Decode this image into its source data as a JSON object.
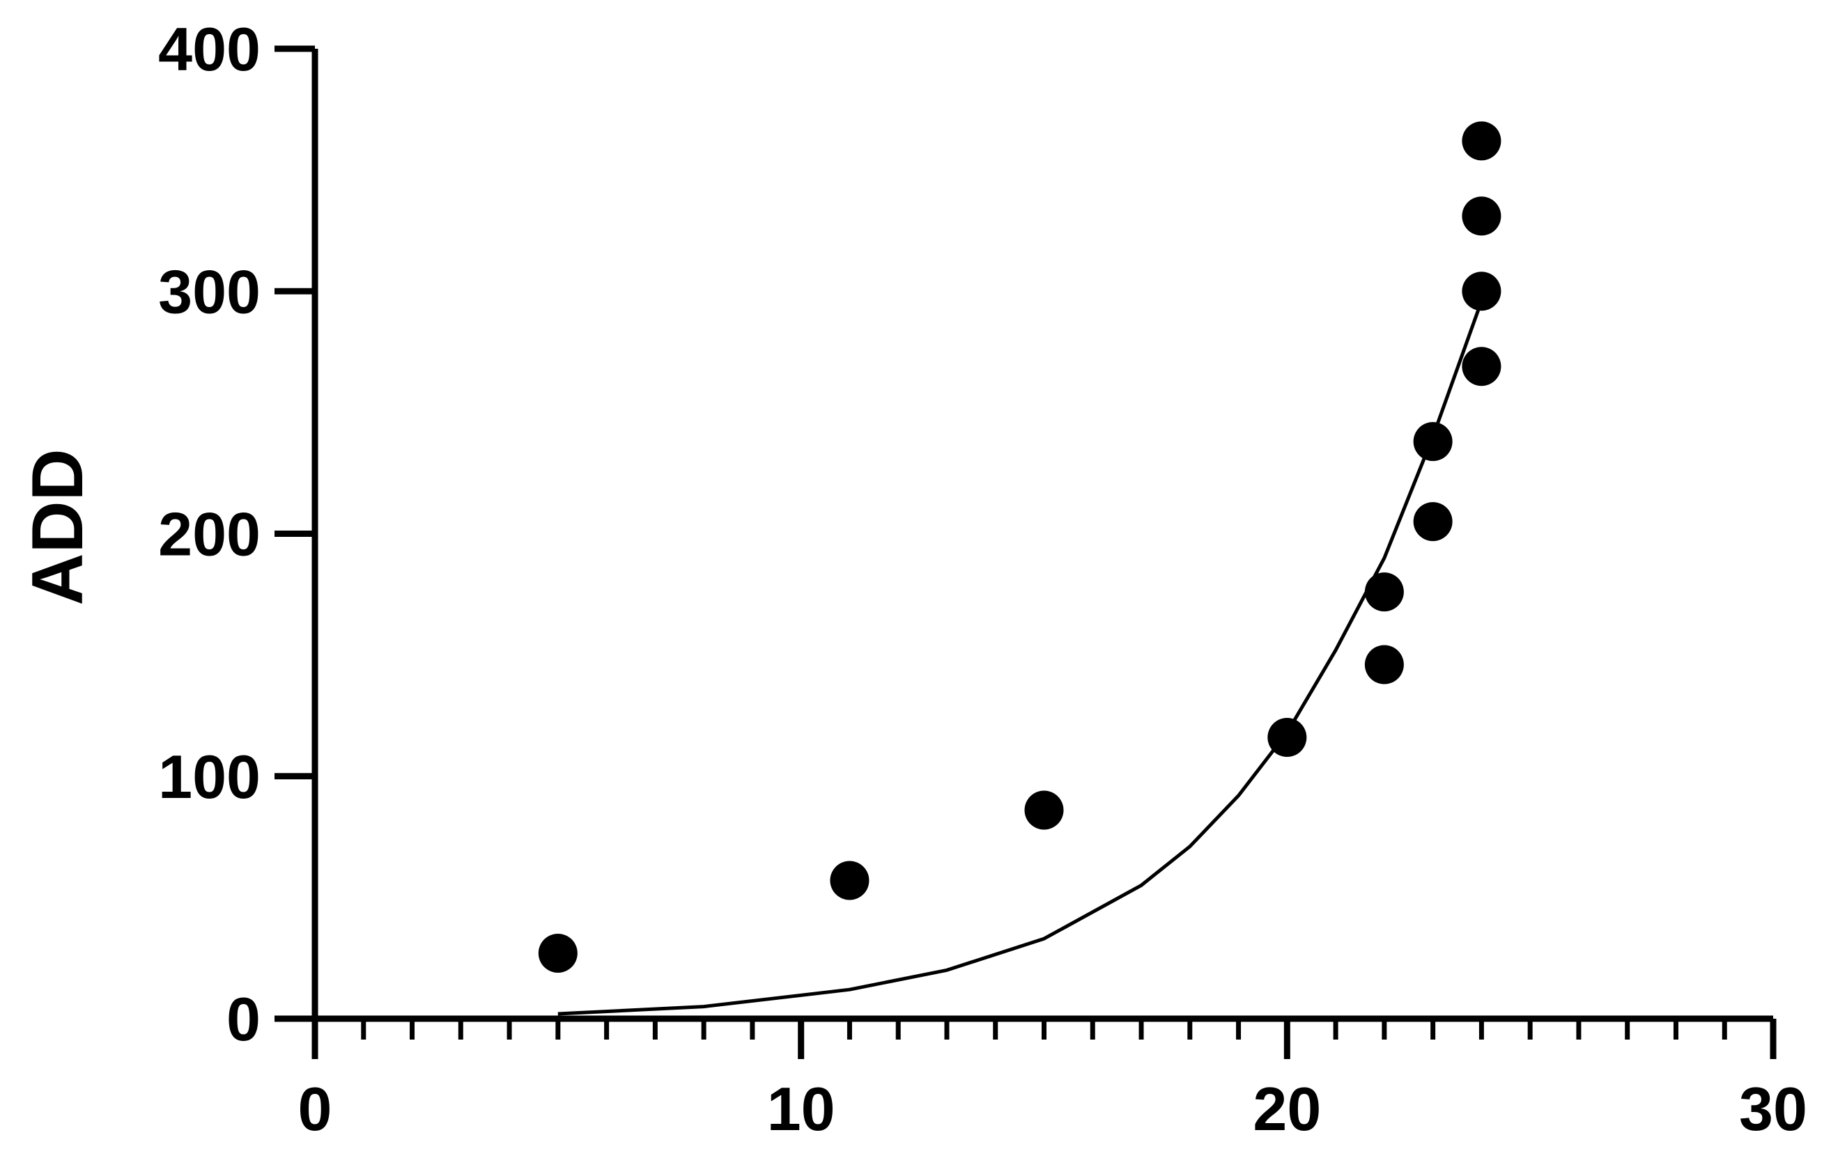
{
  "chart_data": {
    "type": "scatter",
    "title": "",
    "xlabel": "",
    "ylabel": "ADD",
    "xlim": [
      0,
      30
    ],
    "ylim": [
      0,
      400
    ],
    "x_ticks": [
      "0",
      "10",
      "20",
      "30"
    ],
    "y_ticks": [
      "0",
      "100",
      "200",
      "300",
      "400"
    ],
    "x_minor_step": 1,
    "grid": false,
    "legend": "none",
    "marker_color": "#000000",
    "series": [
      {
        "type": "scatter",
        "points": [
          {
            "x": 5,
            "y": 27
          },
          {
            "x": 11,
            "y": 57
          },
          {
            "x": 15,
            "y": 86
          },
          {
            "x": 20,
            "y": 116
          },
          {
            "x": 22,
            "y": 146
          },
          {
            "x": 22,
            "y": 176
          },
          {
            "x": 23,
            "y": 205
          },
          {
            "x": 23,
            "y": 238
          },
          {
            "x": 24,
            "y": 269
          },
          {
            "x": 24,
            "y": 300
          },
          {
            "x": 24,
            "y": 331
          },
          {
            "x": 24,
            "y": 362
          }
        ]
      },
      {
        "type": "line",
        "curve": "exponential fit",
        "points": [
          {
            "x": 5,
            "y": 2
          },
          {
            "x": 8,
            "y": 5
          },
          {
            "x": 11,
            "y": 12
          },
          {
            "x": 13,
            "y": 20
          },
          {
            "x": 15,
            "y": 33
          },
          {
            "x": 17,
            "y": 55
          },
          {
            "x": 18,
            "y": 71
          },
          {
            "x": 19,
            "y": 92
          },
          {
            "x": 20,
            "y": 118
          },
          {
            "x": 21,
            "y": 152
          },
          {
            "x": 22,
            "y": 190
          },
          {
            "x": 23,
            "y": 240
          },
          {
            "x": 24,
            "y": 296
          }
        ]
      }
    ]
  }
}
